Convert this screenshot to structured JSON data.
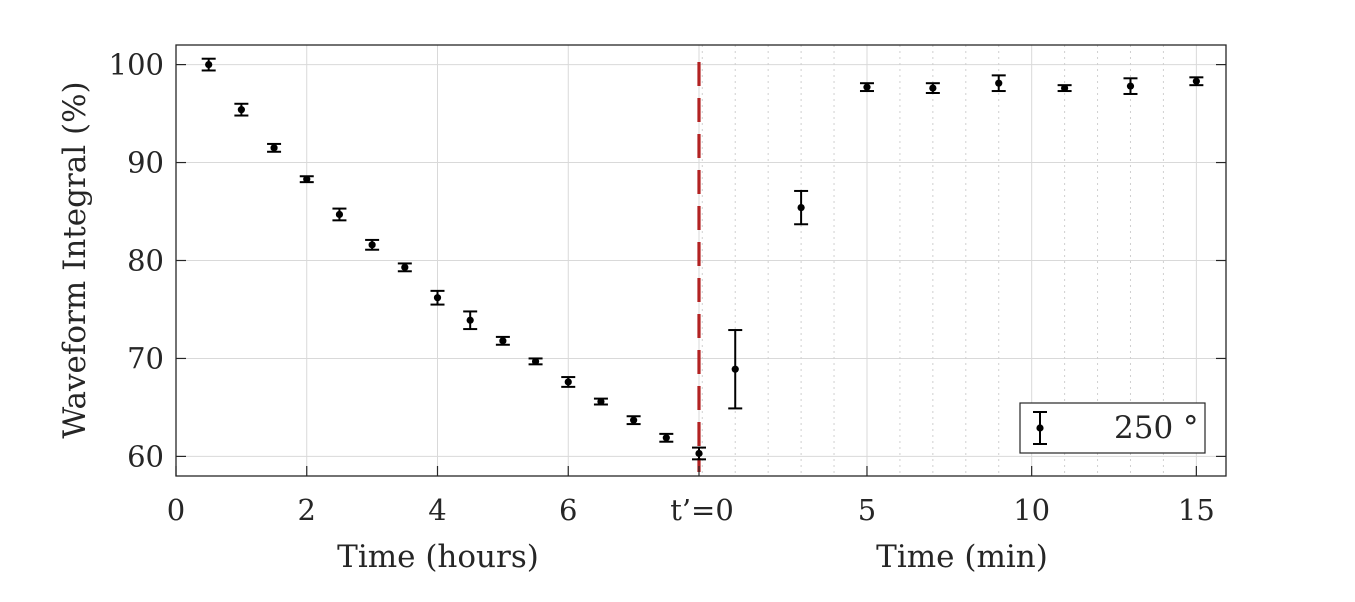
{
  "chart_data": {
    "type": "scatter",
    "ylabel": "Waveform Integral (%)",
    "ylim": [
      58,
      102
    ],
    "yticks": [
      60,
      70,
      80,
      90,
      100
    ],
    "grid": true,
    "legend": {
      "label": "250 °",
      "placement": "bottom-right"
    },
    "divider": {
      "label": "t’=0",
      "color": "#b22222",
      "style": "dashed"
    },
    "left_panel": {
      "xlabel": "Time (hours)",
      "xlim": [
        0,
        8
      ],
      "xticks": [
        0,
        2,
        4,
        6
      ],
      "x": [
        0.5,
        1.0,
        1.5,
        2.0,
        2.5,
        3.0,
        3.5,
        4.0,
        4.5,
        5.0,
        5.5,
        6.0,
        6.5,
        7.0,
        7.5,
        8.0
      ],
      "y": [
        100.0,
        95.4,
        91.5,
        88.3,
        84.7,
        81.6,
        79.3,
        76.2,
        73.9,
        71.8,
        69.7,
        67.6,
        65.6,
        63.7,
        61.9,
        60.3
      ],
      "err": [
        0.6,
        0.6,
        0.4,
        0.3,
        0.6,
        0.5,
        0.4,
        0.7,
        0.9,
        0.4,
        0.3,
        0.5,
        0.3,
        0.4,
        0.4,
        0.6
      ]
    },
    "right_panel": {
      "xlabel": "Time (min)",
      "xlim": [
        -0.1,
        15.9
      ],
      "xticks": [
        5,
        10,
        15
      ],
      "x": [
        1,
        3,
        5,
        7,
        9,
        11,
        13,
        15
      ],
      "y": [
        68.9,
        85.4,
        97.7,
        97.6,
        98.1,
        97.6,
        97.8,
        98.3
      ],
      "err": [
        4.0,
        1.7,
        0.4,
        0.5,
        0.8,
        0.3,
        0.8,
        0.4
      ],
      "minor_grid_step": 1
    }
  }
}
